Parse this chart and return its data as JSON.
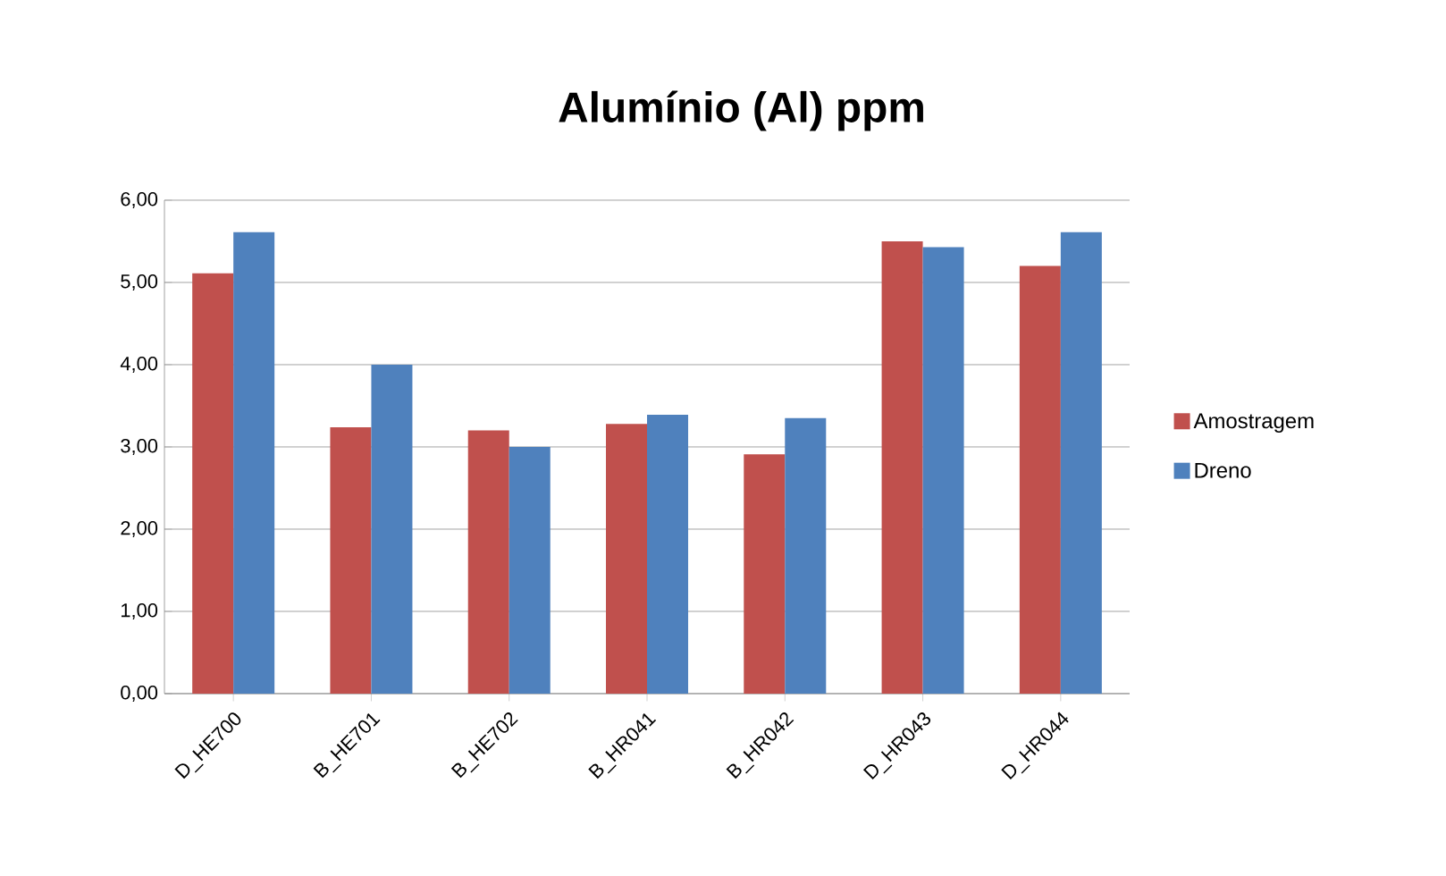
{
  "chart_data": {
    "type": "bar",
    "title": "Alumínio (Al) ppm",
    "categories": [
      "D_HE700",
      "B_HE701",
      "B_HE702",
      "B_HR041",
      "B_HR042",
      "D_HR043",
      "D_HR044"
    ],
    "series": [
      {
        "name": "Amostragem",
        "color": "#c0504d",
        "values": [
          5.11,
          3.24,
          3.2,
          3.28,
          2.91,
          5.5,
          5.2
        ]
      },
      {
        "name": "Dreno",
        "color": "#4f81bd",
        "values": [
          5.61,
          4.0,
          3.0,
          3.39,
          3.35,
          5.43,
          5.61
        ]
      }
    ],
    "ylim": [
      0,
      6
    ],
    "yticks": [
      {
        "value": 0,
        "label": "0,00"
      },
      {
        "value": 1,
        "label": "1,00"
      },
      {
        "value": 2,
        "label": "2,00"
      },
      {
        "value": 3,
        "label": "3,00"
      },
      {
        "value": 4,
        "label": "4,00"
      },
      {
        "value": 5,
        "label": "5,00"
      },
      {
        "value": 6,
        "label": "6,00"
      }
    ],
    "grid": "y",
    "legend": "right"
  }
}
